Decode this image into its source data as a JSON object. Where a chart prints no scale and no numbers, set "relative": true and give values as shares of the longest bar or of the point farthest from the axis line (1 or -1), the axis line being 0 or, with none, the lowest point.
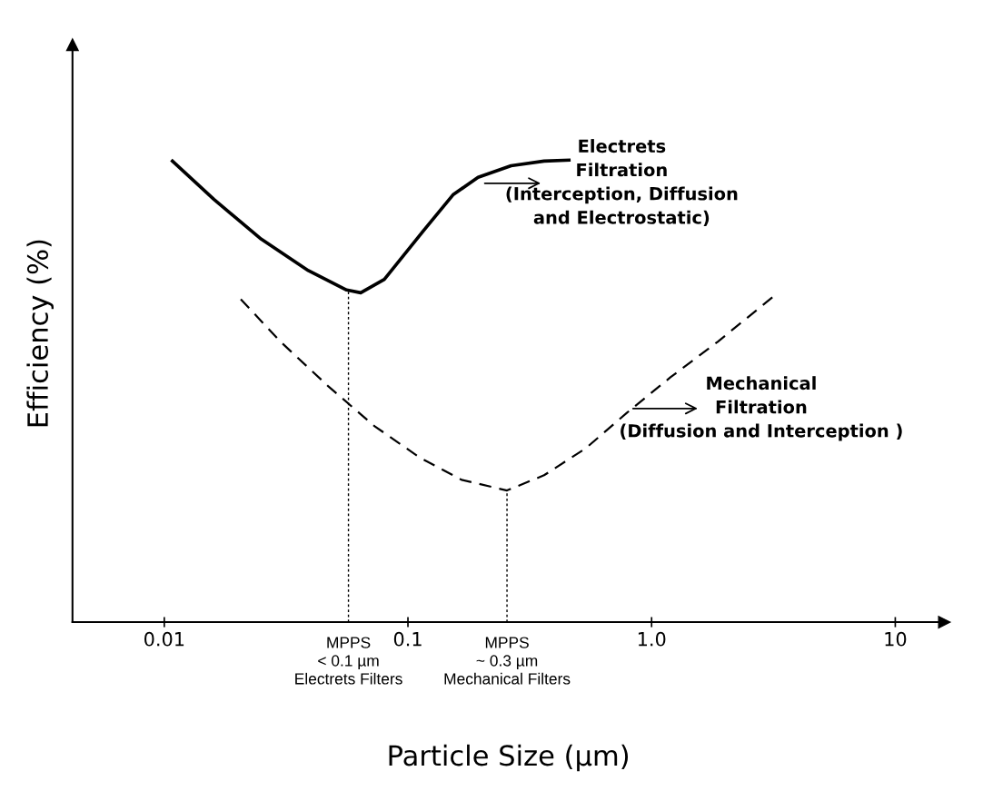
{
  "chart_data": {
    "type": "line",
    "relative": true,
    "log": "x",
    "xlabel": "Particle Size (µm)",
    "ylabel": "Efficiency (%)",
    "xlim": [
      0.0042,
      15.9
    ],
    "xticks": [
      0.01,
      0.1,
      {
        "value": 1,
        "label": "1.0"
      },
      10
    ],
    "grid": false,
    "series": [
      {
        "color": "#000000",
        "line_style": "solid",
        "x": [
          0.0108,
          0.016,
          0.025,
          0.039,
          0.056,
          0.064,
          0.08,
          0.112,
          0.153,
          0.194,
          0.265,
          0.362,
          0.458
        ],
        "values": [
          0.998,
          0.915,
          0.829,
          0.761,
          0.719,
          0.713,
          0.742,
          0.838,
          0.925,
          0.963,
          0.988,
          0.998,
          1.0
        ]
      },
      {
        "color": "#000000",
        "line_style": "dashed",
        "x": [
          0.0206,
          0.03,
          0.047,
          0.073,
          0.112,
          0.166,
          0.255,
          0.362,
          0.536,
          0.791,
          1.195,
          1.868,
          3.13
        ],
        "values": [
          0.699,
          0.607,
          0.511,
          0.424,
          0.356,
          0.308,
          0.285,
          0.318,
          0.376,
          0.453,
          0.53,
          0.607,
          0.703
        ]
      }
    ],
    "ref_lines": [
      {
        "axis": "x",
        "value": 0.057,
        "label": "MPPS\n< 0.1 µm\nElectrets Filters",
        "color": "#000000",
        "line_style": "dotted"
      },
      {
        "axis": "x",
        "value": 0.255,
        "label": "MPPS\n~ 0.3 µm\nMechanical Filters",
        "color": "#000000",
        "line_style": "dotted"
      }
    ],
    "annotations": [
      "Electrets\nFiltration\n(Interception, Diffusion\nand Electrostatic)",
      "Mechanical\nFiltration\n(Diffusion and Interception )"
    ]
  }
}
